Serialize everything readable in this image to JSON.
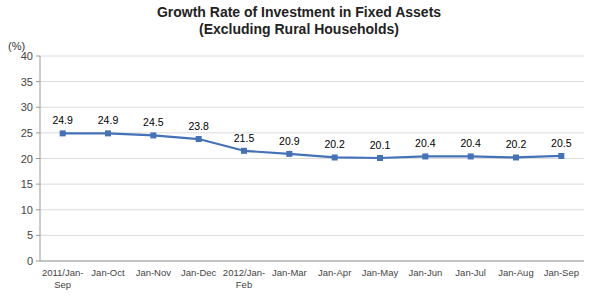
{
  "chart_data": {
    "type": "line",
    "title": "Growth Rate of Investment in Fixed Assets",
    "subtitle": "(Excluding Rural Households)",
    "y_label": "(%)",
    "categories": [
      "2011/Jan-\nSep",
      "Jan-Oct",
      "Jan-Nov",
      "Jan-Dec",
      "2012/Jan-\nFeb",
      "Jan-Mar",
      "Jan-Apr",
      "Jan-May",
      "Jan-Jun",
      "Jan-Jul",
      "Jan-Aug",
      "Jan-Sep"
    ],
    "values": [
      24.9,
      24.9,
      24.5,
      23.8,
      21.5,
      20.9,
      20.2,
      20.1,
      20.4,
      20.4,
      20.2,
      20.5
    ],
    "color": "#4472b8",
    "marker": "square",
    "ylim": [
      0,
      40
    ],
    "yticks": [
      0,
      5,
      10,
      15,
      20,
      25,
      30,
      35,
      40
    ],
    "grid": true,
    "data_labels": true
  }
}
